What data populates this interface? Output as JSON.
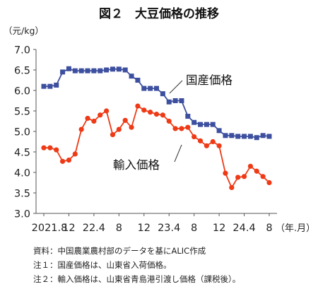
{
  "chart_data": {
    "type": "line",
    "title": "図２　大豆価格の推移",
    "ylabel": "（元/kg）",
    "xlabel": "（年.月）",
    "ylim": [
      3.0,
      7.0
    ],
    "yticks": [
      "7.0",
      "6.5",
      "6.0",
      "5.5",
      "5.0",
      "4.5",
      "4.0",
      "3.5",
      "3.0"
    ],
    "xticks": [
      {
        "index": 0,
        "label": "2021.8"
      },
      {
        "index": 4,
        "label": "12"
      },
      {
        "index": 8,
        "label": "22.4"
      },
      {
        "index": 12,
        "label": "8"
      },
      {
        "index": 16,
        "label": "12"
      },
      {
        "index": 20,
        "label": "23.4"
      },
      {
        "index": 24,
        "label": "8"
      },
      {
        "index": 28,
        "label": "12"
      },
      {
        "index": 32,
        "label": "24.4"
      },
      {
        "index": 36,
        "label": "8"
      }
    ],
    "grid": false,
    "series": [
      {
        "name": "国産価格",
        "color": "#3d4f9f",
        "marker": "square",
        "values": [
          6.1,
          6.1,
          6.13,
          6.45,
          6.53,
          6.48,
          6.48,
          6.48,
          6.48,
          6.48,
          6.5,
          6.52,
          6.52,
          6.5,
          6.35,
          6.25,
          6.05,
          6.05,
          6.05,
          5.92,
          5.72,
          5.75,
          5.75,
          5.37,
          5.22,
          5.17,
          5.17,
          5.17,
          5.02,
          4.9,
          4.9,
          4.88,
          4.88,
          4.88,
          4.85,
          4.9,
          4.88
        ]
      },
      {
        "name": "輸入価格",
        "color": "#ee3a16",
        "marker": "circle",
        "values": [
          4.6,
          4.6,
          4.55,
          4.27,
          4.3,
          4.45,
          5.05,
          5.32,
          5.25,
          5.4,
          5.5,
          4.92,
          5.05,
          5.27,
          5.1,
          5.62,
          5.52,
          5.47,
          5.42,
          5.4,
          5.25,
          5.07,
          5.07,
          5.1,
          4.87,
          4.77,
          4.65,
          4.75,
          4.65,
          3.98,
          3.63,
          3.88,
          3.9,
          4.15,
          4.03,
          3.9,
          3.75
        ]
      }
    ]
  },
  "notes": [
    "資料：中国農業農村部のデータを基にALIC作成",
    "注１：国産価格は、山東省入荷価格。",
    "注２：輸入価格は、山東省青島港引渡し価格（課税後）。"
  ]
}
